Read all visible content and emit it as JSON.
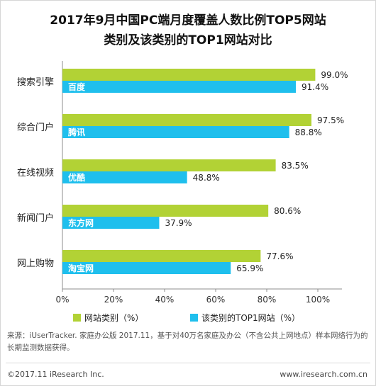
{
  "chart_data": {
    "type": "bar",
    "orientation": "horizontal",
    "title_line1": "2017年9月中国PC端月度覆盖人数比例TOP5网站",
    "title_line2": "类别及该类别的TOP1网站对比",
    "categories": [
      "搜索引擎",
      "综合门户",
      "在线视频",
      "新闻门户",
      "网上购物"
    ],
    "series": [
      {
        "name": "网站类别（%）",
        "color": "#b2d235",
        "values": [
          99.0,
          97.5,
          83.5,
          80.6,
          77.6
        ],
        "value_labels": [
          "99.0%",
          "97.5%",
          "83.5%",
          "80.6%",
          "77.6%"
        ]
      },
      {
        "name": "该类别的TOP1网站（%）",
        "color": "#1fbfed",
        "values": [
          91.4,
          88.8,
          48.8,
          37.9,
          65.9
        ],
        "value_labels": [
          "91.4%",
          "88.8%",
          "48.8%",
          "37.9%",
          "65.9%"
        ],
        "bar_labels": [
          "百度",
          "腾讯",
          "优酷",
          "东方网",
          "淘宝网"
        ]
      }
    ],
    "x_ticks": [
      "0%",
      "20%",
      "40%",
      "60%",
      "80%",
      "100%"
    ],
    "xlim": [
      0,
      100
    ],
    "legend_position": "bottom",
    "grid": false
  },
  "source_text": "来源：iUserTracker. 家庭办公版 2017.11，基于对40万名家庭及办公（不含公共上网地点）样本网络行为的长期监测数据获得。",
  "footer": {
    "copyright": "©2017.11 iResearch Inc.",
    "website": "www.iresearch.com.cn"
  }
}
